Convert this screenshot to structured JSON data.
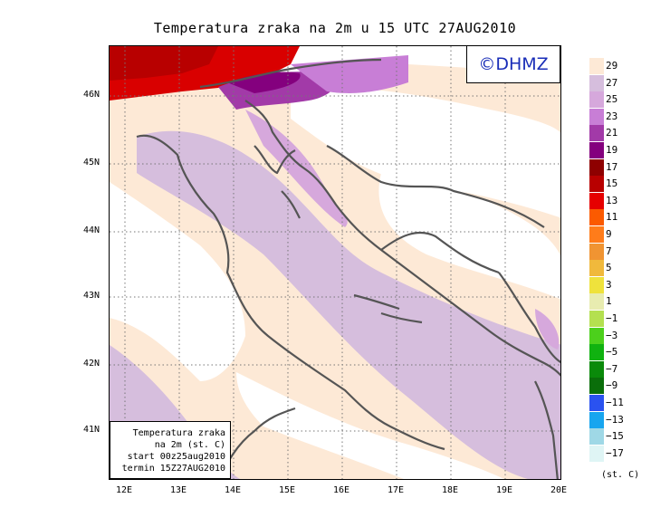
{
  "title": "Temperatura zraka na 2m u 15 UTC 27AUG2010",
  "logo": "©DHMZ",
  "info_box": {
    "line1": "Temperatura zraka",
    "line2": "na 2m (st. C)",
    "line3": "start 00z25aug2010",
    "line4": "termin 15Z27AUG2010"
  },
  "lat_labels": [
    "46N",
    "45N",
    "44N",
    "43N",
    "42N",
    "41N"
  ],
  "lon_labels": [
    "12E",
    "13E",
    "14E",
    "15E",
    "16E",
    "17E",
    "18E",
    "19E",
    "20E"
  ],
  "legend": {
    "unit": "(st. C)",
    "labels": [
      "29",
      "27",
      "25",
      "23",
      "21",
      "19",
      "17",
      "15",
      "13",
      "11",
      "9",
      "7",
      "5",
      "3",
      "1",
      "−1",
      "−3",
      "−5",
      "−7",
      "−9",
      "−11",
      "−13",
      "−15",
      "−17"
    ],
    "colors": [
      "#fde9d6",
      "#d6bedd",
      "#d6a8dc",
      "#c87ed6",
      "#a23aa8",
      "#84007e",
      "#8e0000",
      "#b80000",
      "#e60000",
      "#fb5a00",
      "#ff7c1a",
      "#f09432",
      "#f0b93c",
      "#efe23c",
      "#e8ecb0",
      "#b4e050",
      "#4cd01c",
      "#10b210",
      "#0a8a0a",
      "#0a6e0a",
      "#2a52f0",
      "#17a5ef",
      "#9fd8e6",
      "#dff5f5"
    ]
  }
}
